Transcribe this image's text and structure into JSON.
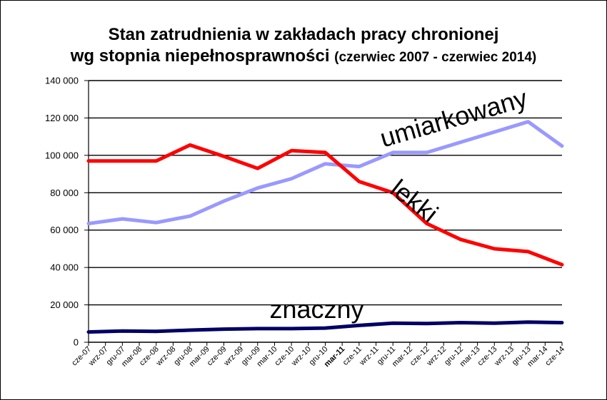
{
  "chart_data": {
    "type": "line",
    "title_line1": "Stan zatrudnienia w zakładach pracy chronionej",
    "title_line2": "wg stopnia niepełnosprawności",
    "title_line2_suffix": "(czerwiec 2007 - czerwiec 2014)",
    "xlabel": "",
    "ylabel": "",
    "ylim": [
      0,
      140000
    ],
    "yticks": [
      "0",
      "20 000",
      "40 000",
      "60 000",
      "80 000",
      "100 000",
      "120 000",
      "140 000"
    ],
    "ytick_values": [
      0,
      20000,
      40000,
      60000,
      80000,
      100000,
      120000,
      140000
    ],
    "grid": true,
    "categories": [
      "cze-07",
      "wrz-07",
      "gru-07",
      "mar-08",
      "cze-08",
      "wrz-08",
      "gru-08",
      "mar-09",
      "cze-09",
      "wrz-09",
      "gru-09",
      "mar-10",
      "cze-10",
      "wrz-10",
      "gru-10",
      "mar-11",
      "cze-11",
      "wrz-11",
      "gru-11",
      "mar-12",
      "cze-12",
      "wrz-12",
      "gru-12",
      "mar-13",
      "cze-13",
      "wrz-13",
      "gru-13",
      "mar-14",
      "cze-14"
    ],
    "bold_category": "mar-11",
    "series": [
      {
        "name": "umiarkowany",
        "color": "#9999ff",
        "values": [
          63500,
          null,
          66000,
          null,
          64000,
          null,
          67500,
          null,
          75500,
          null,
          82500,
          null,
          87500,
          null,
          95500,
          null,
          94000,
          null,
          101500,
          null,
          101500,
          null,
          107000,
          null,
          112500,
          null,
          118000,
          null,
          105000
        ]
      },
      {
        "name": "lekki",
        "color": "#ff0000",
        "values": [
          97000,
          null,
          97000,
          null,
          97000,
          null,
          105500,
          null,
          99500,
          null,
          93000,
          null,
          102500,
          null,
          101500,
          null,
          86000,
          null,
          80000,
          null,
          63500,
          null,
          55000,
          null,
          50000,
          null,
          48500,
          null,
          41500
        ]
      },
      {
        "name": "znaczny",
        "color": "#000066",
        "values": [
          5500,
          null,
          6000,
          null,
          5800,
          null,
          6500,
          null,
          7000,
          null,
          7300,
          null,
          7300,
          null,
          7600,
          null,
          9000,
          null,
          10200,
          null,
          10000,
          null,
          10500,
          null,
          10200,
          null,
          10800,
          null,
          10500
        ]
      }
    ]
  }
}
